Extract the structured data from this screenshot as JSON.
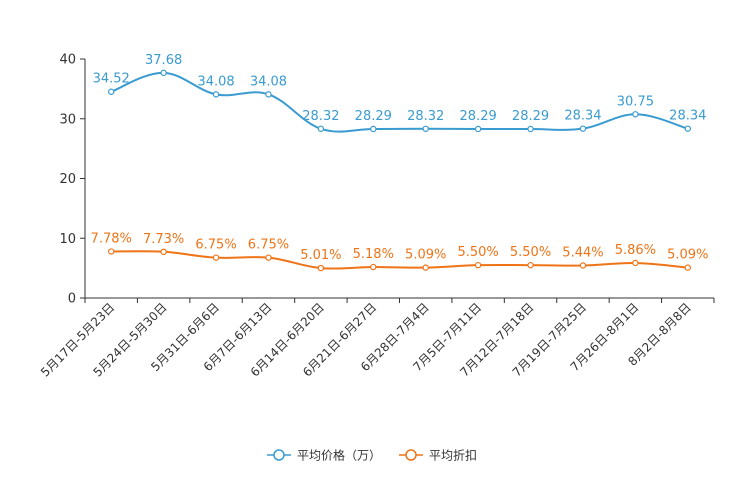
{
  "chart_data": {
    "type": "line",
    "title": "",
    "xlabel": "",
    "ylabel": "",
    "ylim": [
      0,
      40
    ],
    "yticks": [
      0,
      10,
      20,
      30,
      40
    ],
    "grid": false,
    "legend_position": "bottom-center",
    "categories": [
      "5月17日-5月23日",
      "5月24日-5月30日",
      "5月31日-6月6日",
      "6月7日-6月13日",
      "6月14日-6月20日",
      "6月21日-6月27日",
      "6月28日-7月4日",
      "7月5日-7月11日",
      "7月12日-7月18日",
      "7月19日-7月25日",
      "7月26日-8月1日",
      "8月2日-8月8日"
    ],
    "series": [
      {
        "name": "平均价格（万）",
        "color": "#3a9bd0",
        "values": [
          34.52,
          37.68,
          34.08,
          34.08,
          28.32,
          28.29,
          28.32,
          28.29,
          28.29,
          28.34,
          30.75,
          28.34
        ],
        "labels": [
          "34.52",
          "37.68",
          "34.08",
          "34.08",
          "28.32",
          "28.29",
          "28.32",
          "28.29",
          "28.29",
          "28.34",
          "30.75",
          "28.34"
        ]
      },
      {
        "name": "平均折扣",
        "color": "#ef7417",
        "values": [
          7.78,
          7.73,
          6.75,
          6.75,
          5.01,
          5.18,
          5.09,
          5.5,
          5.5,
          5.44,
          5.86,
          5.09
        ],
        "labels": [
          "7.78%",
          "7.73%",
          "6.75%",
          "6.75%",
          "5.01%",
          "5.18%",
          "5.09%",
          "5.50%",
          "5.50%",
          "5.44%",
          "5.86%",
          "5.09%"
        ]
      }
    ]
  }
}
